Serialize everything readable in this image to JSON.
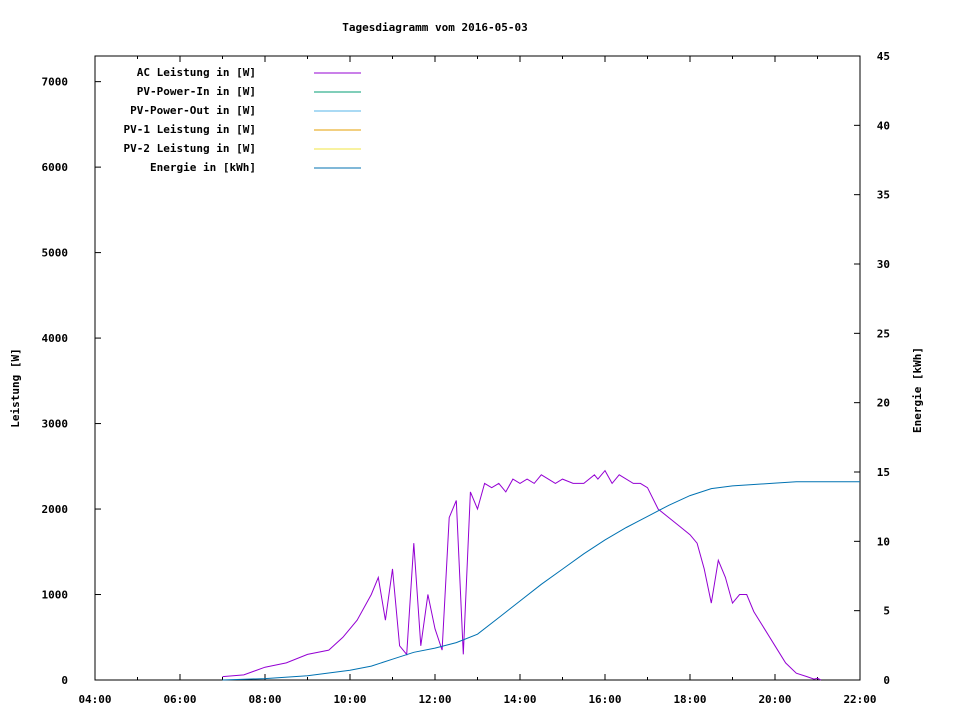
{
  "chart_data": {
    "type": "line",
    "title": "Tagesdiagramm vom 2016-05-03",
    "ylabel": "Leistung [W]",
    "y2label": "Energie [kWh]",
    "xlim": [
      "04:00",
      "22:00"
    ],
    "ylim": [
      0,
      7300
    ],
    "y2lim": [
      0,
      45
    ],
    "xticks": [
      "04:00",
      "06:00",
      "08:00",
      "10:00",
      "12:00",
      "14:00",
      "16:00",
      "18:00",
      "20:00",
      "22:00"
    ],
    "yticks": [
      0,
      1000,
      2000,
      3000,
      4000,
      5000,
      6000,
      7000
    ],
    "y2ticks": [
      0,
      5,
      10,
      15,
      20,
      25,
      30,
      35,
      40,
      45
    ],
    "grid": false,
    "legend_position": "top-left",
    "series": [
      {
        "name": "AC Leistung in [W]",
        "axis": "left",
        "color": "#9400d3",
        "x": [
          "07:00",
          "07:30",
          "08:00",
          "08:30",
          "09:00",
          "09:30",
          "09:50",
          "10:10",
          "10:30",
          "10:40",
          "10:50",
          "11:00",
          "11:10",
          "11:20",
          "11:30",
          "11:40",
          "11:50",
          "12:00",
          "12:10",
          "12:20",
          "12:30",
          "12:40",
          "12:50",
          "13:00",
          "13:10",
          "13:20",
          "13:30",
          "13:40",
          "13:50",
          "14:00",
          "14:10",
          "14:20",
          "14:30",
          "14:40",
          "14:50",
          "15:00",
          "15:15",
          "15:30",
          "15:45",
          "15:50",
          "16:00",
          "16:10",
          "16:20",
          "16:40",
          "16:50",
          "17:00",
          "17:15",
          "17:30",
          "17:45",
          "18:00",
          "18:10",
          "18:20",
          "18:30",
          "18:40",
          "18:50",
          "19:00",
          "19:10",
          "19:20",
          "19:30",
          "19:45",
          "20:00",
          "20:15",
          "20:30",
          "20:45",
          "20:55",
          "21:00",
          "21:05"
        ],
        "values": [
          40,
          60,
          150,
          200,
          300,
          350,
          500,
          700,
          1000,
          1200,
          700,
          1300,
          400,
          300,
          1600,
          400,
          1000,
          600,
          350,
          1900,
          2100,
          300,
          2200,
          2000,
          2300,
          2250,
          2300,
          2200,
          2350,
          2300,
          2350,
          2300,
          2400,
          2350,
          2300,
          2350,
          2300,
          2300,
          2400,
          2350,
          2450,
          2300,
          2400,
          2300,
          2300,
          2250,
          2000,
          1900,
          1800,
          1700,
          1600,
          1300,
          900,
          1400,
          1200,
          900,
          1000,
          1000,
          800,
          600,
          400,
          200,
          80,
          40,
          10,
          20,
          0
        ]
      },
      {
        "name": "PV-Power-In in [W]",
        "axis": "left",
        "color": "#009e73",
        "values": []
      },
      {
        "name": "PV-Power-Out in [W]",
        "axis": "left",
        "color": "#56b4e9",
        "values": []
      },
      {
        "name": "PV-1 Leistung in [W]",
        "axis": "left",
        "color": "#e69f00",
        "values": []
      },
      {
        "name": "PV-2 Leistung in [W]",
        "axis": "left",
        "color": "#f0e442",
        "values": []
      },
      {
        "name": "Energie in [kWh]",
        "axis": "right",
        "color": "#0072b2",
        "x": [
          "07:00",
          "08:00",
          "09:00",
          "10:00",
          "10:30",
          "11:00",
          "11:30",
          "12:00",
          "12:30",
          "13:00",
          "13:30",
          "14:00",
          "14:30",
          "15:00",
          "15:30",
          "16:00",
          "16:30",
          "17:00",
          "17:30",
          "18:00",
          "18:30",
          "19:00",
          "19:30",
          "20:00",
          "20:30",
          "21:00",
          "22:00"
        ],
        "values": [
          0,
          0.1,
          0.3,
          0.7,
          1.0,
          1.5,
          2.0,
          2.3,
          2.7,
          3.3,
          4.5,
          5.7,
          6.9,
          8.0,
          9.1,
          10.1,
          11.0,
          11.8,
          12.6,
          13.3,
          13.8,
          14.0,
          14.1,
          14.2,
          14.3,
          14.3,
          14.3
        ]
      }
    ]
  }
}
